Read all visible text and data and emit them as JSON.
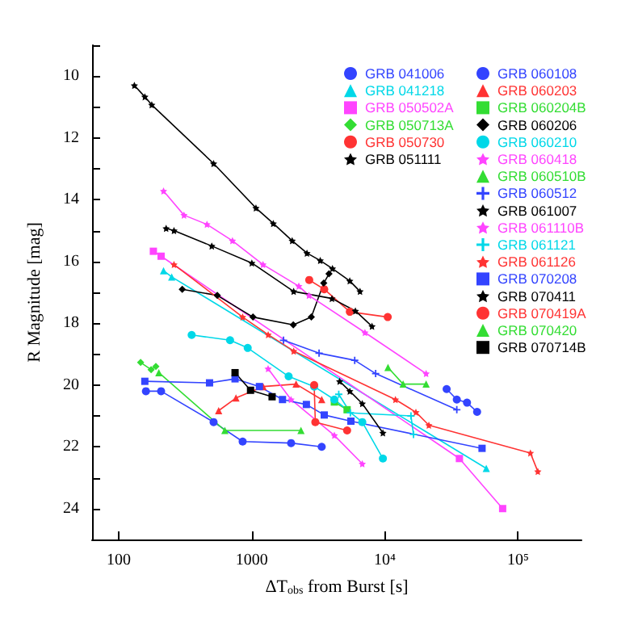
{
  "chart_data": {
    "type": "line",
    "xlabel": "ΔT$_{obs}$ from Burst [s]",
    "ylabel": "R Magnitude [mag]",
    "log": "x",
    "grid": false,
    "legend": "top right",
    "line_style": "solid",
    "xlim": [
      63,
      300000
    ],
    "xticks": [
      100,
      1000,
      {
        "value": 10000,
        "label": "10⁴"
      },
      {
        "value": 100000,
        "label": "10⁵"
      }
    ],
    "ylim": [
      25,
      9
    ],
    "yticks": [
      {
        "value": 9,
        "label": null
      },
      10,
      {
        "value": 11,
        "label": null
      },
      12,
      {
        "value": 13,
        "label": null
      },
      14,
      {
        "value": 15,
        "label": null
      },
      16,
      {
        "value": 17,
        "label": null
      },
      18,
      {
        "value": 19,
        "label": null
      },
      20,
      {
        "value": 21,
        "label": null
      },
      22,
      {
        "value": 23,
        "label": null
      },
      24,
      {
        "value": 25,
        "label": null
      }
    ],
    "series": [
      {
        "name": "GRB 041006",
        "color": "#3344ff",
        "marker": "circle",
        "x": [
          29100,
          34700,
          41400,
          49300
        ],
        "values": [
          20.13,
          20.47,
          20.57,
          20.87
        ]
      },
      {
        "name": "GRB 041218",
        "color": "#00d8e8",
        "marker": "triangle",
        "x": [
          217,
          250,
          57800
        ],
        "values": [
          16.3,
          16.5,
          22.7
        ]
      },
      {
        "name": "GRB 050502A",
        "color": "#ff44ff",
        "marker": "square",
        "x": [
          182,
          208,
          36300,
          76700
        ],
        "values": [
          15.67,
          15.83,
          22.38,
          24.0
        ]
      },
      {
        "name": "GRB 050713A",
        "color": "#33dd33",
        "marker": "diamond",
        "x": [
          146,
          175,
          190
        ],
        "values": [
          19.27,
          19.5,
          19.4
        ]
      },
      {
        "name": "GRB 050730",
        "color": "#ff3333",
        "marker": "circle",
        "x": [
          2700,
          3500,
          5450,
          10500
        ],
        "values": [
          16.6,
          16.9,
          17.63,
          17.8
        ]
      },
      {
        "name": "GRB 051111",
        "color": "#000000",
        "marker": "star",
        "x": [
          131,
          157,
          177,
          516,
          1074,
          1449,
          2010,
          2596,
          3266,
          4036,
          5445,
          6500
        ],
        "values": [
          10.3,
          10.67,
          10.93,
          12.83,
          14.27,
          14.77,
          15.33,
          15.73,
          15.97,
          16.23,
          16.63,
          16.97
        ]
      },
      {
        "name": "GRB 060108",
        "color": "#3344ff",
        "marker": "circle",
        "x": [
          160,
          208,
          516,
          853,
          1973,
          3350
        ],
        "values": [
          20.2,
          20.2,
          21.2,
          21.83,
          21.88,
          22.0
        ]
      },
      {
        "name": "GRB 060203",
        "color": "#ff3333",
        "marker": "triangle",
        "x": [
          563,
          760,
          1216,
          2150,
          3350
        ],
        "values": [
          20.83,
          20.42,
          20.05,
          19.97,
          20.47
        ]
      },
      {
        "name": "GRB 060204B",
        "color": "#33dd33",
        "marker": "square",
        "x": [
          4170,
          5200
        ],
        "values": [
          20.55,
          20.8
        ]
      },
      {
        "name": "GRB 060206",
        "color": "#000000",
        "marker": "diamond",
        "x": [
          300,
          550,
          1020,
          2050,
          2800,
          3470,
          3800
        ],
        "values": [
          16.9,
          17.1,
          17.8,
          18.05,
          17.8,
          16.7,
          16.4
        ]
      },
      {
        "name": "GRB 060210",
        "color": "#00d8e8",
        "marker": "circle",
        "x": [
          353,
          686,
          931,
          1890,
          2940,
          4170,
          6760,
          9660
        ],
        "values": [
          18.38,
          18.55,
          18.8,
          19.72,
          20.05,
          20.47,
          21.2,
          22.38
        ]
      },
      {
        "name": "GRB 060418",
        "color": "#ff44ff",
        "marker": "star",
        "x": [
          217,
          309,
          460,
          715,
          1213,
          2254,
          2686,
          7080,
          20400
        ],
        "values": [
          13.72,
          14.5,
          14.8,
          15.33,
          16.1,
          16.8,
          17.1,
          18.3,
          19.63
        ]
      },
      {
        "name": "GRB 060510B",
        "color": "#33dd33",
        "marker": "triangle",
        "x": [
          200,
          627,
          2340
        ],
        "values": [
          19.6,
          21.47,
          21.47
        ]
      },
      {
        "name": "GRB 060512",
        "color": "#3344ff",
        "marker": "cross",
        "x": [
          1730,
          3200,
          5930,
          8520,
          34700
        ],
        "values": [
          18.55,
          18.97,
          19.2,
          19.63,
          20.8
        ]
      },
      {
        "name": "GRB 061007",
        "color": "#000000",
        "marker": "star",
        "x": [
          227,
          260,
          500,
          1000,
          2062,
          4000,
          6000,
          8000
        ],
        "values": [
          14.93,
          15.0,
          15.5,
          16.05,
          16.97,
          17.2,
          17.6,
          18.1
        ]
      },
      {
        "name": "GRB 061110B",
        "color": "#ff44ff",
        "marker": "star",
        "x": [
          1325,
          1970,
          4170,
          6760
        ],
        "values": [
          19.47,
          20.47,
          21.63,
          22.55
        ]
      },
      {
        "name": "GRB 061121",
        "color": "#00d8e8",
        "marker": "cross",
        "x": [
          4500,
          5500,
          15700,
          16400
        ],
        "values": [
          20.3,
          20.9,
          21.0,
          21.6
        ]
      },
      {
        "name": "GRB 061126",
        "color": "#ff3333",
        "marker": "star",
        "x": [
          260,
          853,
          1327,
          2063,
          12000,
          17100,
          21400,
          124000,
          141000
        ],
        "values": [
          16.1,
          17.8,
          18.37,
          18.9,
          20.47,
          20.88,
          21.3,
          22.2,
          22.8
        ]
      },
      {
        "name": "GRB 070208",
        "color": "#3344ff",
        "marker": "square",
        "x": [
          157,
          481,
          748,
          1140,
          1700,
          2570,
          3500,
          5550,
          53700
        ],
        "values": [
          19.88,
          19.93,
          19.8,
          20.05,
          20.47,
          20.63,
          20.97,
          21.17,
          22.05
        ]
      },
      {
        "name": "GRB 070411",
        "color": "#000000",
        "marker": "star",
        "x": [
          4570,
          5450,
          6760,
          9660
        ],
        "values": [
          19.88,
          20.2,
          20.6,
          21.55
        ]
      },
      {
        "name": "GRB 070419A",
        "color": "#ff3333",
        "marker": "circle",
        "x": [
          2940,
          3000,
          5200
        ],
        "values": [
          20.0,
          21.2,
          21.47
        ]
      },
      {
        "name": "GRB 070420",
        "color": "#33dd33",
        "marker": "triangle",
        "x": [
          10550,
          13700,
          20400
        ],
        "values": [
          19.43,
          19.97,
          19.97
        ]
      },
      {
        "name": "GRB 070714B",
        "color": "#000000",
        "marker": "square",
        "x": [
          748,
          978,
          1420
        ],
        "values": [
          19.6,
          20.17,
          20.38
        ]
      }
    ]
  }
}
